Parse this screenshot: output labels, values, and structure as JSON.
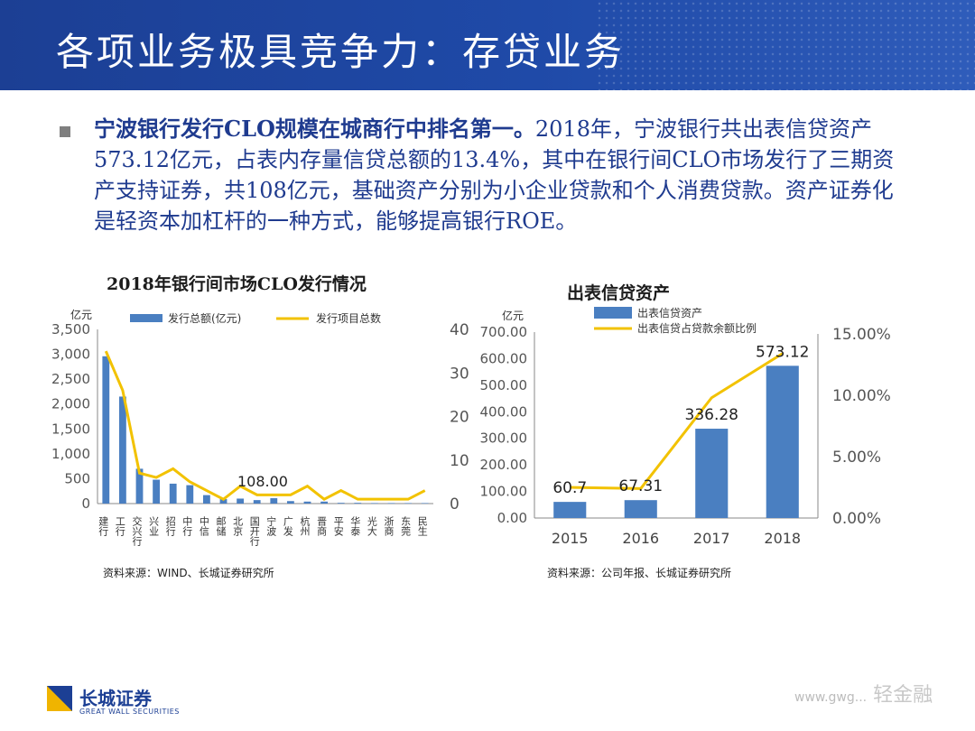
{
  "header": {
    "title": "各项业务极具竞争力：存贷业务"
  },
  "bullet": {
    "bold_text": "宁波银行发行CLO规模在城商行中排名第一。",
    "text": "2018年，宁波银行共出表信贷资产573.12亿元，占表内存量信贷总额的13.4%，其中在银行间CLO市场发行了三期资产支持证券，共108亿元，基础资产分别为小企业贷款和个人消费贷款。资产证券化是轻资本加杠杆的一种方式，能够提高银行ROE。"
  },
  "colors": {
    "header_blue": "#1c3f94",
    "bar_blue": "#4a7fc1",
    "line_gold": "#f2c200",
    "text_blue": "#1f3b8f"
  },
  "chart_data": [
    {
      "type": "bar",
      "title": "2018年银行间市场CLO发行情况",
      "ylabel": "亿元",
      "categories": [
        "建行",
        "工行",
        "交兴行",
        "兴业",
        "招行",
        "中行",
        "中信",
        "邮储",
        "北京",
        "国开行",
        "宁波",
        "广发",
        "杭州",
        "晋商",
        "平安",
        "华泰",
        "光大",
        "浙商",
        "东莞",
        "民生"
      ],
      "series": [
        {
          "name": "发行总额(亿元)",
          "axis": "left",
          "values": [
            2960,
            2150,
            700,
            480,
            400,
            370,
            170,
            90,
            100,
            70,
            108,
            50,
            40,
            40,
            15,
            15,
            10,
            10,
            10,
            10
          ]
        },
        {
          "name": "发行项目总数",
          "axis": "right",
          "values": [
            35,
            26,
            7,
            6,
            8,
            5,
            3,
            1,
            4,
            2,
            2,
            2,
            4,
            1,
            3,
            1,
            1,
            1,
            1,
            3
          ]
        }
      ],
      "annotation": "108.00",
      "y_left_ticks": [
        "3,500",
        "3,000",
        "2,500",
        "2,000",
        "1,500",
        "1,000",
        "500",
        "0"
      ],
      "y_right_ticks": [
        "40",
        "30",
        "20",
        "10",
        "0"
      ],
      "ylim_left": [
        0,
        3500
      ],
      "ylim_right": [
        0,
        40
      ],
      "legend_position": "top",
      "source": "资料来源：WIND、长城证券研究所"
    },
    {
      "type": "bar",
      "title": "出表信贷资产",
      "ylabel": "亿元",
      "categories": [
        "2015",
        "2016",
        "2017",
        "2018"
      ],
      "series": [
        {
          "name": "出表信贷资产",
          "axis": "left",
          "values": [
            60.7,
            67.31,
            336.28,
            573.12
          ]
        },
        {
          "name": "出表信贷占贷款余额比例",
          "axis": "right",
          "values": [
            2.5,
            2.4,
            9.8,
            13.4
          ]
        }
      ],
      "value_labels": [
        "60.7",
        "67.31",
        "336.28",
        "573.12"
      ],
      "y_left_ticks": [
        "700.00",
        "600.00",
        "500.00",
        "400.00",
        "300.00",
        "200.00",
        "100.00",
        "0.00"
      ],
      "y_right_ticks": [
        "15.00%",
        "10.00%",
        "5.00%",
        "0.00%"
      ],
      "ylim_left": [
        0,
        700
      ],
      "ylim_right": [
        0,
        15
      ],
      "legend_position": "top",
      "source": "资料来源：公司年报、长城证券研究所"
    }
  ],
  "footer": {
    "logo_cn": "长城证券",
    "logo_en": "GREAT WALL SECURITIES",
    "watermark": "轻金融",
    "watermark_url": "www.gwg..."
  }
}
